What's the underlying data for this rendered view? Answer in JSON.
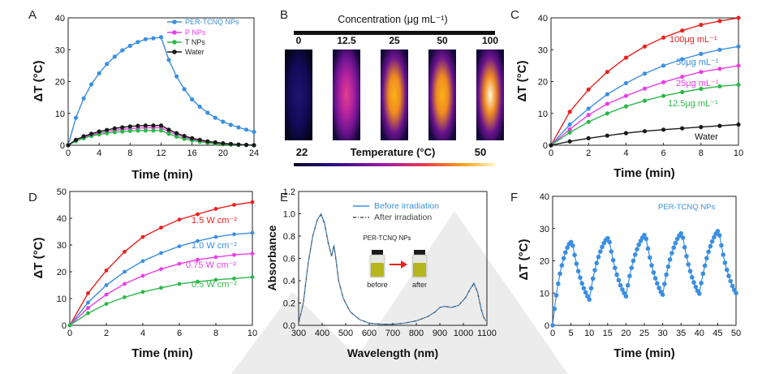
{
  "colors": {
    "blue": "#3b8fe0",
    "magenta": "#e83ee8",
    "green": "#2cb84a",
    "black": "#1a1a1a",
    "red": "#e8231f",
    "watermark": "#d9d9d9"
  },
  "chart_data": [
    {
      "panel": "A",
      "type": "line",
      "xlabel": "Time (min)",
      "ylabel": "ΔT (°C)",
      "xlim": [
        0,
        24
      ],
      "ylim": [
        0,
        40
      ],
      "xticks": [
        "0",
        "4",
        "8",
        "12",
        "16",
        "20",
        "24"
      ],
      "yticks": [
        "0",
        "10",
        "20",
        "30",
        "40"
      ],
      "legend_position": "top-right",
      "series": [
        {
          "name": "PER-TCNQ NPs",
          "color": "#3b8fe0",
          "x": [
            0,
            1,
            2,
            3,
            4,
            5,
            6,
            7,
            8,
            9,
            10,
            11,
            12,
            13,
            14,
            15,
            16,
            17,
            18,
            19,
            20,
            21,
            22,
            23,
            24
          ],
          "y": [
            0,
            8.6,
            14.7,
            19.1,
            22.6,
            25.5,
            27.8,
            29.8,
            31.2,
            32.4,
            33.3,
            33.6,
            33.9,
            26.8,
            21.6,
            17.6,
            14.4,
            12.1,
            10.2,
            8.6,
            7.4,
            6.4,
            5.6,
            4.9,
            4.2
          ]
        },
        {
          "name": "P NPs",
          "color": "#e83ee8",
          "x": [
            0,
            1,
            2,
            3,
            4,
            5,
            6,
            7,
            8,
            9,
            10,
            11,
            12,
            13,
            14,
            15,
            16,
            17,
            18,
            19,
            20,
            21,
            22,
            23,
            24
          ],
          "y": [
            0,
            1.5,
            2.5,
            3.2,
            3.8,
            4.3,
            4.7,
            5,
            5.2,
            5.4,
            5.5,
            5.5,
            5.5,
            4.3,
            3.3,
            2.5,
            1.9,
            1.4,
            1,
            0.7,
            0.5,
            0.3,
            0.2,
            0.1,
            0
          ]
        },
        {
          "name": "T NPs",
          "color": "#2cb84a",
          "x": [
            0,
            1,
            2,
            3,
            4,
            5,
            6,
            7,
            8,
            9,
            10,
            11,
            12,
            13,
            14,
            15,
            16,
            17,
            18,
            19,
            20,
            21,
            22,
            23,
            24
          ],
          "y": [
            0,
            1.3,
            2.2,
            2.9,
            3.4,
            3.8,
            4.1,
            4.3,
            4.5,
            4.6,
            4.6,
            4.6,
            4.6,
            3.6,
            2.7,
            2,
            1.5,
            1.1,
            0.8,
            0.5,
            0.3,
            0.2,
            0.1,
            0.1,
            0
          ]
        },
        {
          "name": "Water",
          "color": "#1a1a1a",
          "x": [
            0,
            1,
            2,
            3,
            4,
            5,
            6,
            7,
            8,
            9,
            10,
            11,
            12,
            13,
            14,
            15,
            16,
            17,
            18,
            19,
            20,
            21,
            22,
            23,
            24
          ],
          "y": [
            0,
            1.7,
            2.8,
            3.6,
            4.3,
            4.8,
            5.3,
            5.6,
            5.9,
            6.1,
            6.2,
            6.2,
            6.2,
            4.9,
            3.8,
            2.9,
            2.2,
            1.7,
            1.2,
            0.9,
            0.6,
            0.4,
            0.2,
            0.1,
            0
          ]
        }
      ]
    },
    {
      "panel": "B",
      "type": "heatmap",
      "title": "Concentration (μg mL⁻¹)",
      "concentrations": [
        "0",
        "12.5",
        "25",
        "50",
        "100"
      ],
      "intensity": [
        0.05,
        0.55,
        0.75,
        0.85,
        1.0
      ],
      "colorbar_label": "Temperature (°C)",
      "colorbar_min": "22",
      "colorbar_max": "50"
    },
    {
      "panel": "C",
      "type": "line",
      "xlabel": "Time (min)",
      "ylabel": "ΔT (°C)",
      "xlim": [
        0,
        10
      ],
      "ylim": [
        0,
        40
      ],
      "xticks": [
        "0",
        "2",
        "4",
        "6",
        "8",
        "10"
      ],
      "yticks": [
        "0",
        "10",
        "20",
        "30",
        "40"
      ],
      "series": [
        {
          "name": "100μg mL⁻¹",
          "color": "#e8231f",
          "x": [
            0,
            1,
            2,
            3,
            4,
            5,
            6,
            7,
            8,
            9,
            10
          ],
          "y": [
            0,
            10.5,
            17.5,
            23,
            27.5,
            31,
            33.8,
            36,
            37.8,
            39,
            40
          ]
        },
        {
          "name": "50μg mL⁻¹",
          "color": "#3b8fe0",
          "x": [
            0,
            1,
            2,
            3,
            4,
            5,
            6,
            7,
            8,
            9,
            10
          ],
          "y": [
            0,
            6.5,
            11.5,
            16,
            19.5,
            22.5,
            25,
            27,
            28.7,
            30,
            31
          ]
        },
        {
          "name": "25μg mL⁻¹",
          "color": "#e83ee8",
          "x": [
            0,
            1,
            2,
            3,
            4,
            5,
            6,
            7,
            8,
            9,
            10
          ],
          "y": [
            0,
            5,
            9.5,
            13,
            15.5,
            17.8,
            19.8,
            21.5,
            23,
            24,
            25
          ]
        },
        {
          "name": "12.5μg mL⁻¹",
          "color": "#2cb84a",
          "x": [
            0,
            1,
            2,
            3,
            4,
            5,
            6,
            7,
            8,
            9,
            10
          ],
          "y": [
            0,
            4,
            7.3,
            10,
            12.2,
            14,
            15.5,
            16.7,
            17.7,
            18.5,
            19
          ]
        },
        {
          "name": "Water",
          "color": "#1a1a1a",
          "x": [
            0,
            1,
            2,
            3,
            4,
            5,
            6,
            7,
            8,
            9,
            10
          ],
          "y": [
            0,
            1.2,
            2.2,
            3,
            3.8,
            4.4,
            4.9,
            5.3,
            5.7,
            6.1,
            6.5
          ]
        }
      ]
    },
    {
      "panel": "D",
      "type": "line",
      "xlabel": "Time (min)",
      "ylabel": "ΔT (°C)",
      "xlim": [
        0,
        10
      ],
      "ylim": [
        0,
        50
      ],
      "xticks": [
        "0",
        "2",
        "4",
        "6",
        "8",
        "10"
      ],
      "yticks": [
        "0",
        "10",
        "20",
        "30",
        "40",
        "50"
      ],
      "series": [
        {
          "name": "1.5 W cm⁻²",
          "color": "#e8231f",
          "x": [
            0,
            1,
            2,
            3,
            4,
            5,
            6,
            7,
            8,
            9,
            10
          ],
          "y": [
            0,
            12,
            20.5,
            27.5,
            33,
            36.5,
            39.5,
            41.5,
            43.5,
            45,
            46
          ]
        },
        {
          "name": "1.0 W cm⁻²",
          "color": "#3b8fe0",
          "x": [
            0,
            1,
            2,
            3,
            4,
            5,
            6,
            7,
            8,
            9,
            10
          ],
          "y": [
            0,
            8.5,
            15,
            20,
            24,
            27,
            29.5,
            31.5,
            33,
            34,
            34.5
          ]
        },
        {
          "name": "0.75 W cm⁻²",
          "color": "#e83ee8",
          "x": [
            0,
            1,
            2,
            3,
            4,
            5,
            6,
            7,
            8,
            9,
            10
          ],
          "y": [
            0,
            6.5,
            11.5,
            15.5,
            18.5,
            21,
            23,
            24.5,
            25.5,
            26.3,
            26.8
          ]
        },
        {
          "name": "0.5 W cm⁻²",
          "color": "#2cb84a",
          "x": [
            0,
            1,
            2,
            3,
            4,
            5,
            6,
            7,
            8,
            9,
            10
          ],
          "y": [
            0,
            4.5,
            8,
            10.5,
            12.5,
            14,
            15.5,
            16.3,
            17,
            17.5,
            18
          ]
        }
      ]
    },
    {
      "panel": "E",
      "type": "line",
      "xlabel": "Wavelength (nm)",
      "ylabel": "Absorbance",
      "xlim": [
        300,
        1100
      ],
      "ylim": [
        0,
        1.2
      ],
      "xticks": [
        "300",
        "400",
        "500",
        "600",
        "700",
        "800",
        "900",
        "1000",
        "1100"
      ],
      "yticks": [
        "0.0",
        "0.2",
        "0.4",
        "0.6",
        "0.8",
        "1.0",
        "1.2"
      ],
      "inset_title": "PER-TCNQ NPs",
      "inset_labels": [
        "before",
        "after"
      ],
      "series": [
        {
          "name": "Before  irradiation",
          "color": "#3b8fe0",
          "x": [
            300,
            320,
            340,
            360,
            380,
            395,
            410,
            425,
            440,
            450,
            458,
            470,
            490,
            520,
            560,
            600,
            650,
            700,
            750,
            800,
            850,
            880,
            900,
            920,
            950,
            980,
            1010,
            1030,
            1045,
            1060,
            1075,
            1085,
            1095
          ],
          "y": [
            0.02,
            0.2,
            0.55,
            0.8,
            0.95,
            1.0,
            0.92,
            0.75,
            0.62,
            0.72,
            0.6,
            0.4,
            0.24,
            0.12,
            0.05,
            0.02,
            0.01,
            0.01,
            0.02,
            0.04,
            0.08,
            0.12,
            0.16,
            0.17,
            0.16,
            0.18,
            0.25,
            0.33,
            0.38,
            0.3,
            0.15,
            0.08,
            0.04
          ]
        },
        {
          "name": "After  irradiation",
          "color": "#555555",
          "x": [
            300,
            320,
            340,
            360,
            380,
            395,
            410,
            425,
            440,
            450,
            458,
            470,
            490,
            520,
            560,
            600,
            650,
            700,
            750,
            800,
            850,
            880,
            900,
            920,
            950,
            980,
            1010,
            1030,
            1045,
            1060,
            1075,
            1085,
            1095
          ],
          "y": [
            0.02,
            0.2,
            0.55,
            0.8,
            0.95,
            0.99,
            0.91,
            0.74,
            0.62,
            0.71,
            0.6,
            0.4,
            0.24,
            0.12,
            0.05,
            0.02,
            0.01,
            0.01,
            0.02,
            0.04,
            0.08,
            0.12,
            0.16,
            0.17,
            0.16,
            0.18,
            0.25,
            0.33,
            0.37,
            0.3,
            0.15,
            0.08,
            0.04
          ]
        }
      ]
    },
    {
      "panel": "F",
      "type": "line",
      "xlabel": "Time (min)",
      "ylabel": "ΔT (°C)",
      "xlim": [
        0,
        50
      ],
      "ylim": [
        0,
        40
      ],
      "xticks": [
        "0",
        "5",
        "10",
        "15",
        "20",
        "25",
        "30",
        "35",
        "40",
        "45",
        "50"
      ],
      "yticks": [
        "0",
        "10",
        "20",
        "30",
        "40"
      ],
      "series_label": "PER-TCNQ NPs",
      "series": [
        {
          "name": "PER-TCNQ NPs",
          "color": "#3b8fe0",
          "x": [
            0,
            0.5,
            1,
            1.5,
            2,
            2.5,
            3,
            3.5,
            4,
            4.5,
            5,
            5.5,
            6,
            6.5,
            7,
            7.5,
            8,
            8.5,
            9,
            9.5,
            10,
            10.5,
            11,
            11.5,
            12,
            12.5,
            13,
            13.5,
            14,
            14.5,
            15,
            15.5,
            16,
            16.5,
            17,
            17.5,
            18,
            18.5,
            19,
            19.5,
            20,
            20.5,
            21,
            21.5,
            22,
            22.5,
            23,
            23.5,
            24,
            24.5,
            25,
            25.5,
            26,
            26.5,
            27,
            27.5,
            28,
            28.5,
            29,
            29.5,
            30,
            30.5,
            31,
            31.5,
            32,
            32.5,
            33,
            33.5,
            34,
            34.5,
            35,
            35.5,
            36,
            36.5,
            37,
            37.5,
            38,
            38.5,
            39,
            39.5,
            40,
            40.5,
            41,
            41.5,
            42,
            42.5,
            43,
            43.5,
            44,
            44.5,
            45,
            45.5,
            46,
            46.5,
            47,
            47.5,
            48,
            48.5,
            49,
            49.5,
            50
          ],
          "y": [
            0,
            5.1,
            9.3,
            12.9,
            16,
            18.6,
            20.8,
            22.6,
            24.1,
            25.2,
            25.8,
            24.7,
            21.8,
            19.1,
            16.8,
            14.8,
            13,
            11.5,
            10.2,
            9,
            8,
            11.5,
            14.5,
            17.1,
            19.3,
            21.2,
            22.9,
            24.3,
            25.5,
            26.5,
            27,
            25.8,
            22.9,
            20.2,
            17.8,
            15.7,
            14,
            12.4,
            11.1,
            10,
            9,
            12.4,
            15.3,
            17.8,
            20,
            21.9,
            23.6,
            25,
            26.2,
            27.2,
            28,
            26.8,
            23.8,
            21,
            18.6,
            16.4,
            14.6,
            13,
            11.6,
            10.4,
            9.5,
            12.8,
            15.7,
            18.2,
            20.4,
            22.4,
            24.1,
            25.5,
            26.8,
            27.8,
            28.5,
            27.2,
            24.2,
            21.4,
            18.9,
            16.8,
            14.9,
            13.3,
            11.9,
            10.7,
            9.8,
            13.1,
            16,
            18.5,
            20.8,
            22.8,
            24.5,
            26,
            27.3,
            28.4,
            29.2,
            27.9,
            24.8,
            21.9,
            19.4,
            17.2,
            15.3,
            13.7,
            12.2,
            11,
            10
          ]
        }
      ]
    }
  ],
  "panels": {
    "a": {
      "letter": "A",
      "legend": [
        "PER-TCNQ NPs",
        "P NPs",
        "T NPs",
        "Water"
      ],
      "xlabel": "Time (min)",
      "ylabel": "ΔT (°C)"
    },
    "b": {
      "letter": "B"
    },
    "c": {
      "letter": "C",
      "xlabel": "Time (min)",
      "ylabel": "ΔT (°C)",
      "labels": [
        "100μg mL⁻¹",
        "50μg mL⁻¹",
        "25μg mL⁻¹",
        "12.5μg mL⁻¹",
        "Water"
      ]
    },
    "d": {
      "letter": "D",
      "xlabel": "Time (min)",
      "ylabel": "ΔT (°C)",
      "labels": [
        "1.5 W cm⁻²",
        "1.0 W cm⁻²",
        "0.75 W cm⁻²",
        "0.5 W cm⁻²"
      ]
    },
    "e": {
      "letter": "E",
      "xlabel": "Wavelength (nm)",
      "ylabel": "Absorbance",
      "legend": [
        "Before  irradiation",
        "After  irradiation"
      ],
      "inset_title": "PER-TCNQ NPs",
      "before": "before",
      "after": "after"
    },
    "f": {
      "letter": "F",
      "xlabel": "Time (min)",
      "ylabel": "ΔT (°C)",
      "series_label": "PER-TCNQ NPs"
    }
  }
}
